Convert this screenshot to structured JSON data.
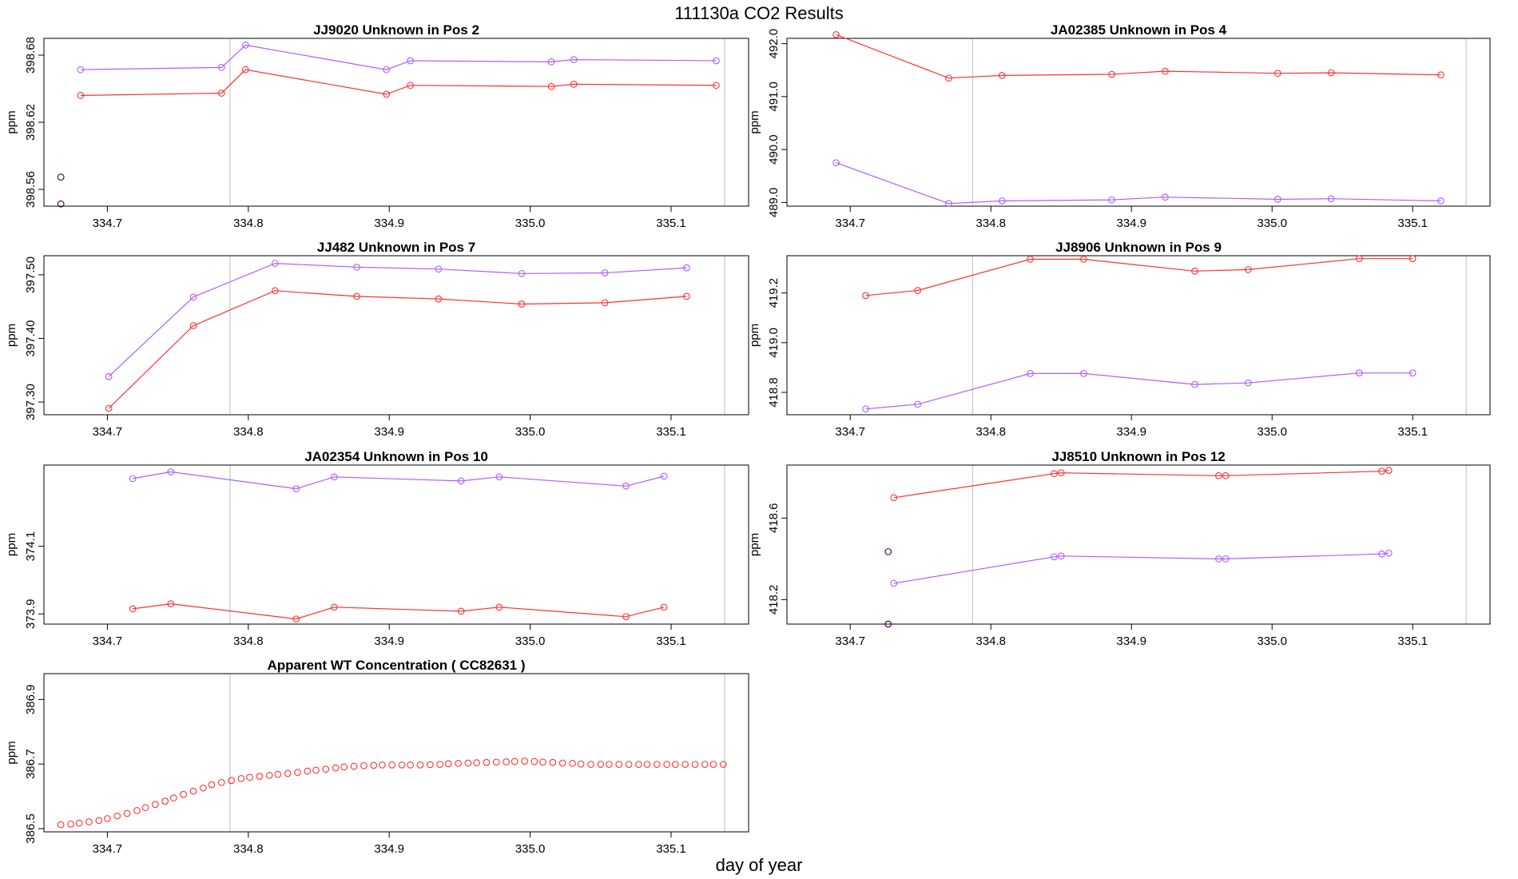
{
  "title": "111130a  CO2 Results",
  "xlabel": "day of year",
  "colors": {
    "series_red": "#ff3030",
    "series_purple": "#b05cff",
    "single": "#3a0040",
    "axis": "#000000",
    "vline": "#c8c8c8"
  },
  "chart_data": [
    {
      "type": "line",
      "title": "JJ9020    Unknown in Pos 2",
      "ylabel": "ppm",
      "xlim": [
        334.655,
        335.155
      ],
      "ylim": [
        398.545,
        398.695
      ],
      "xticks": [
        334.7,
        334.8,
        334.9,
        335.0,
        335.1
      ],
      "xtick_labels": [
        "334.7",
        "334.8",
        "334.9",
        "335.0",
        "335.1"
      ],
      "yticks": [
        398.56,
        398.62,
        398.68
      ],
      "ytick_labels": [
        "398.56",
        "398.62",
        "398.68"
      ],
      "vlines": [
        334.787,
        335.138
      ],
      "series": [
        {
          "name": "purple",
          "color": "#b05cff",
          "x": [
            334.681,
            334.781,
            334.798,
            334.898,
            334.915,
            335.015,
            335.031,
            335.132
          ],
          "y": [
            398.667,
            398.669,
            398.689,
            398.667,
            398.675,
            398.674,
            398.676,
            398.675
          ]
        },
        {
          "name": "red",
          "color": "#ff3030",
          "x": [
            334.681,
            334.781,
            334.798,
            334.898,
            334.915,
            335.015,
            335.031,
            335.132
          ],
          "y": [
            398.644,
            398.646,
            398.667,
            398.645,
            398.653,
            398.652,
            398.654,
            398.653
          ]
        },
        {
          "name": "single",
          "color": "#3a0040",
          "x": [
            334.667,
            334.667
          ],
          "y": [
            398.571,
            398.547
          ],
          "points_only": true
        }
      ]
    },
    {
      "type": "line",
      "title": "JA02385    Unknown in Pos 4",
      "ylabel": "ppm",
      "xlim": [
        334.655,
        335.155
      ],
      "ylim": [
        488.93,
        492.1
      ],
      "xticks": [
        334.7,
        334.8,
        334.9,
        335.0,
        335.1
      ],
      "xtick_labels": [
        "334.7",
        "334.8",
        "334.9",
        "335.0",
        "335.1"
      ],
      "yticks": [
        489.0,
        490.0,
        491.0,
        492.0
      ],
      "ytick_labels": [
        "489.0",
        "490.0",
        "491.0",
        "492.0"
      ],
      "vlines": [
        334.787,
        335.138
      ],
      "series": [
        {
          "name": "red",
          "color": "#ff3030",
          "x": [
            334.69,
            334.77,
            334.808,
            334.886,
            334.924,
            335.004,
            335.042,
            335.12
          ],
          "y": [
            492.17,
            491.35,
            491.4,
            491.42,
            491.48,
            491.44,
            491.45,
            491.41
          ]
        },
        {
          "name": "purple",
          "color": "#b05cff",
          "x": [
            334.69,
            334.77,
            334.808,
            334.886,
            334.924,
            335.004,
            335.042,
            335.12
          ],
          "y": [
            489.75,
            488.98,
            489.03,
            489.05,
            489.1,
            489.06,
            489.07,
            489.03
          ]
        }
      ]
    },
    {
      "type": "line",
      "title": "JJ482    Unknown in Pos 7",
      "ylabel": "ppm",
      "xlim": [
        334.655,
        335.155
      ],
      "ylim": [
        397.28,
        397.53
      ],
      "xticks": [
        334.7,
        334.8,
        334.9,
        335.0,
        335.1
      ],
      "xtick_labels": [
        "334.7",
        "334.8",
        "334.9",
        "335.0",
        "335.1"
      ],
      "yticks": [
        397.3,
        397.4,
        397.5
      ],
      "ytick_labels": [
        "397.30",
        "397.40",
        "397.50"
      ],
      "vlines": [
        334.787,
        335.138
      ],
      "series": [
        {
          "name": "purple",
          "color": "#b05cff",
          "x": [
            334.701,
            334.761,
            334.819,
            334.877,
            334.935,
            334.994,
            335.053,
            335.111
          ],
          "y": [
            397.34,
            397.465,
            397.518,
            397.512,
            397.509,
            397.502,
            397.503,
            397.511
          ]
        },
        {
          "name": "red",
          "color": "#ff3030",
          "x": [
            334.701,
            334.761,
            334.819,
            334.877,
            334.935,
            334.994,
            335.053,
            335.111
          ],
          "y": [
            397.29,
            397.42,
            397.475,
            397.466,
            397.462,
            397.454,
            397.456,
            397.466
          ]
        }
      ]
    },
    {
      "type": "line",
      "title": "JJ8906    Unknown in Pos 9",
      "ylabel": "ppm",
      "xlim": [
        334.655,
        335.155
      ],
      "ylim": [
        418.71,
        419.35
      ],
      "xticks": [
        334.7,
        334.8,
        334.9,
        335.0,
        335.1
      ],
      "xtick_labels": [
        "334.7",
        "334.8",
        "334.9",
        "335.0",
        "335.1"
      ],
      "yticks": [
        418.8,
        419.0,
        419.2
      ],
      "ytick_labels": [
        "418.8",
        "419.0",
        "419.2"
      ],
      "vlines": [
        334.787,
        335.138
      ],
      "series": [
        {
          "name": "red",
          "color": "#ff3030",
          "x": [
            334.711,
            334.748,
            334.828,
            334.866,
            334.945,
            334.983,
            335.062,
            335.1
          ],
          "y": [
            419.19,
            419.21,
            419.336,
            419.336,
            419.288,
            419.294,
            419.338,
            419.338
          ]
        },
        {
          "name": "purple",
          "color": "#b05cff",
          "x": [
            334.711,
            334.748,
            334.828,
            334.866,
            334.945,
            334.983,
            335.062,
            335.1
          ],
          "y": [
            418.733,
            418.752,
            418.876,
            418.876,
            418.832,
            418.838,
            418.878,
            418.878
          ]
        }
      ]
    },
    {
      "type": "line",
      "title": "JA02354    Unknown in Pos 10",
      "ylabel": "ppm",
      "xlim": [
        334.655,
        335.155
      ],
      "ylim": [
        373.87,
        374.34
      ],
      "xticks": [
        334.7,
        334.8,
        334.9,
        335.0,
        335.1
      ],
      "xtick_labels": [
        "334.7",
        "334.8",
        "334.9",
        "335.0",
        "335.1"
      ],
      "yticks": [
        373.9,
        374.1
      ],
      "ytick_labels": [
        "373.9",
        "374.1"
      ],
      "vlines": [
        334.787,
        335.138
      ],
      "series": [
        {
          "name": "purple",
          "color": "#b05cff",
          "x": [
            334.718,
            334.745,
            334.834,
            334.861,
            334.951,
            334.978,
            335.068,
            335.095
          ],
          "y": [
            374.3,
            374.32,
            374.27,
            374.305,
            374.293,
            374.305,
            374.278,
            374.307
          ]
        },
        {
          "name": "red",
          "color": "#ff3030",
          "x": [
            334.718,
            334.745,
            334.834,
            334.861,
            334.951,
            334.978,
            335.068,
            335.095
          ],
          "y": [
            373.915,
            373.93,
            373.885,
            373.92,
            373.908,
            373.92,
            373.892,
            373.92
          ]
        }
      ]
    },
    {
      "type": "line",
      "title": "JJ8510    Unknown in Pos 12",
      "ylabel": "ppm",
      "xlim": [
        334.655,
        335.155
      ],
      "ylim": [
        418.08,
        418.86
      ],
      "xticks": [
        334.7,
        334.8,
        334.9,
        335.0,
        335.1
      ],
      "xtick_labels": [
        "334.7",
        "334.8",
        "334.9",
        "335.0",
        "335.1"
      ],
      "yticks": [
        418.2,
        418.6
      ],
      "ytick_labels": [
        "418.2",
        "418.6"
      ],
      "vlines": [
        334.787,
        335.138
      ],
      "series": [
        {
          "name": "red",
          "color": "#ff3030",
          "x": [
            334.731,
            334.845,
            334.85,
            334.962,
            334.967,
            335.078,
            335.083
          ],
          "y": [
            418.7,
            418.818,
            418.822,
            418.808,
            418.808,
            418.83,
            418.834
          ]
        },
        {
          "name": "purple",
          "color": "#b05cff",
          "x": [
            334.731,
            334.845,
            334.85,
            334.962,
            334.967,
            335.078,
            335.083
          ],
          "y": [
            418.28,
            418.41,
            418.414,
            418.4,
            418.4,
            418.424,
            418.428
          ]
        },
        {
          "name": "single",
          "color": "#3a0040",
          "x": [
            334.727,
            334.727
          ],
          "y": [
            418.435,
            418.08
          ],
          "points_only": true
        }
      ]
    },
    {
      "type": "scatter",
      "title": "Apparent WT Concentration ( CC82631 )",
      "ylabel": "ppm",
      "xlim": [
        334.655,
        335.155
      ],
      "ylim": [
        386.49,
        386.98
      ],
      "xticks": [
        334.7,
        334.8,
        334.9,
        335.0,
        335.1
      ],
      "xtick_labels": [
        "334.7",
        "334.8",
        "334.9",
        "335.0",
        "335.1"
      ],
      "yticks": [
        386.5,
        386.7,
        386.9
      ],
      "ytick_labels": [
        "386.5",
        "386.7",
        "386.9"
      ],
      "vlines": [
        334.787,
        335.138
      ],
      "series": [
        {
          "name": "red",
          "color": "#ff3030",
          "points_only": true,
          "x": [
            334.667,
            334.674,
            334.68,
            334.687,
            334.694,
            334.7,
            334.707,
            334.714,
            334.721,
            334.727,
            334.734,
            334.741,
            334.747,
            334.754,
            334.761,
            334.768,
            334.774,
            334.781,
            334.788,
            334.795,
            334.801,
            334.808,
            334.815,
            334.821,
            334.828,
            334.835,
            334.842,
            334.848,
            334.855,
            334.862,
            334.868,
            334.875,
            334.882,
            334.889,
            334.895,
            334.902,
            334.909,
            334.915,
            334.922,
            334.929,
            334.936,
            334.942,
            334.949,
            334.956,
            334.962,
            334.969,
            334.976,
            334.983,
            334.989,
            334.996,
            335.003,
            335.009,
            335.016,
            335.023,
            335.03,
            335.036,
            335.043,
            335.05,
            335.056,
            335.063,
            335.07,
            335.077,
            335.083,
            335.09,
            335.097,
            335.103,
            335.11,
            335.117,
            335.124,
            335.13,
            335.137
          ],
          "y": [
            386.512,
            386.514,
            386.517,
            386.521,
            386.525,
            386.531,
            386.539,
            386.547,
            386.556,
            386.565,
            386.575,
            386.585,
            386.595,
            386.606,
            386.616,
            386.626,
            386.636,
            386.643,
            386.649,
            386.655,
            386.659,
            386.662,
            386.665,
            386.668,
            386.671,
            386.674,
            386.678,
            386.681,
            386.684,
            386.688,
            386.691,
            386.693,
            386.695,
            386.696,
            386.697,
            386.697,
            386.697,
            386.697,
            386.697,
            386.698,
            386.699,
            386.701,
            386.702,
            386.703,
            386.704,
            386.705,
            386.706,
            386.707,
            386.708,
            386.709,
            386.708,
            386.706,
            386.705,
            386.703,
            386.702,
            386.7,
            386.699,
            386.699,
            386.699,
            386.699,
            386.699,
            386.699,
            386.699,
            386.699,
            386.699,
            386.699,
            386.699,
            386.699,
            386.699,
            386.699,
            386.699
          ]
        }
      ]
    }
  ]
}
